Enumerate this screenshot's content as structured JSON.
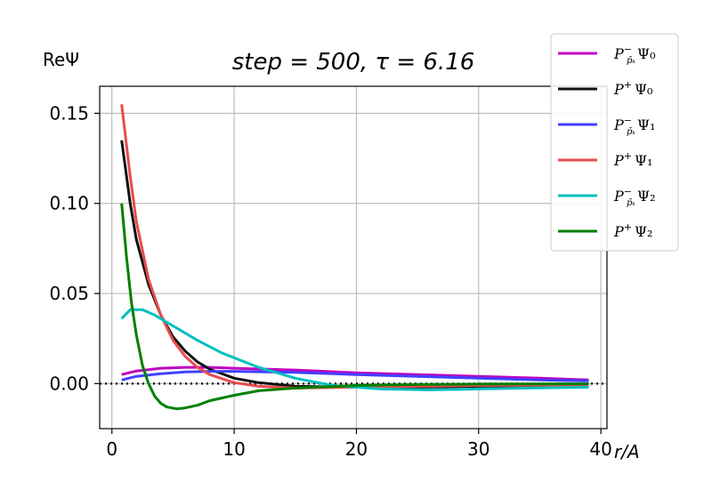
{
  "chart_data": {
    "type": "line",
    "title": "step = 500, τ = 6.16",
    "xlabel": "r/A",
    "ylabel": "ReΨ",
    "xlim": [
      -1,
      40.5
    ],
    "ylim": [
      -0.025,
      0.165
    ],
    "xticks": [
      "0",
      "10",
      "20",
      "30",
      "40"
    ],
    "yticks": [
      "0.00",
      "0.05",
      "0.10",
      "0.15"
    ],
    "grid": true,
    "legend_position": "top-right, outside",
    "reference_line": {
      "y": 0,
      "style": "dotted",
      "color": "#000000"
    },
    "series": [
      {
        "name": "P⁻p̄ₖ Ψ₀",
        "color": "#bf00bf",
        "x": [
          0.8,
          2,
          4,
          6,
          8,
          10,
          15,
          20,
          25,
          30,
          35,
          39
        ],
        "y": [
          0.005,
          0.007,
          0.0085,
          0.009,
          0.009,
          0.0085,
          0.0075,
          0.006,
          0.005,
          0.004,
          0.003,
          0.002
        ]
      },
      {
        "name": "P⁺Ψ₀",
        "color": "#111111",
        "x": [
          0.8,
          1.5,
          2,
          3,
          4,
          5,
          6,
          7,
          8,
          10,
          12,
          15,
          20,
          25,
          30,
          39
        ],
        "y": [
          0.135,
          0.1,
          0.08,
          0.055,
          0.038,
          0.026,
          0.018,
          0.012,
          0.008,
          0.003,
          0.0005,
          -0.0015,
          -0.002,
          -0.002,
          -0.0015,
          -0.001
        ]
      },
      {
        "name": "P⁻p̄ₖ Ψ₁",
        "color": "#4040ff",
        "x": [
          0.8,
          2,
          4,
          6,
          8,
          10,
          15,
          20,
          25,
          30,
          35,
          39
        ],
        "y": [
          0.002,
          0.004,
          0.0055,
          0.0065,
          0.0068,
          0.0068,
          0.0062,
          0.005,
          0.004,
          0.003,
          0.002,
          0.0015
        ]
      },
      {
        "name": "P⁺Ψ₁",
        "color": "#e84c4c",
        "x": [
          0.8,
          1.5,
          2,
          3,
          4,
          5,
          6,
          7,
          8,
          10,
          12,
          15,
          20,
          25,
          30,
          39
        ],
        "y": [
          0.155,
          0.115,
          0.09,
          0.058,
          0.038,
          0.024,
          0.015,
          0.009,
          0.005,
          0.0005,
          -0.0015,
          -0.0025,
          -0.002,
          -0.0015,
          -0.001,
          -0.0008
        ]
      },
      {
        "name": "P⁻p̄ₖ Ψ₂",
        "color": "#00bfbf",
        "x": [
          0.8,
          1.5,
          2.5,
          3.5,
          5,
          7,
          9,
          12,
          15,
          18,
          22,
          26,
          30,
          34,
          39
        ],
        "y": [
          0.036,
          0.041,
          0.041,
          0.038,
          0.032,
          0.024,
          0.017,
          0.009,
          0.003,
          -0.001,
          -0.003,
          -0.0035,
          -0.003,
          -0.0025,
          -0.002
        ]
      },
      {
        "name": "P⁺Ψ₂",
        "color": "#008000",
        "x": [
          0.8,
          1.2,
          1.6,
          2,
          2.5,
          3,
          3.5,
          4,
          4.5,
          5.3,
          6,
          7,
          8,
          10,
          12,
          15,
          20,
          25,
          30,
          39
        ],
        "y": [
          0.1,
          0.07,
          0.045,
          0.027,
          0.01,
          0.0,
          -0.007,
          -0.011,
          -0.013,
          -0.014,
          -0.0135,
          -0.012,
          -0.0095,
          -0.0065,
          -0.004,
          -0.0025,
          -0.001,
          -0.0005,
          -0.0003,
          -0.0001
        ]
      }
    ]
  }
}
